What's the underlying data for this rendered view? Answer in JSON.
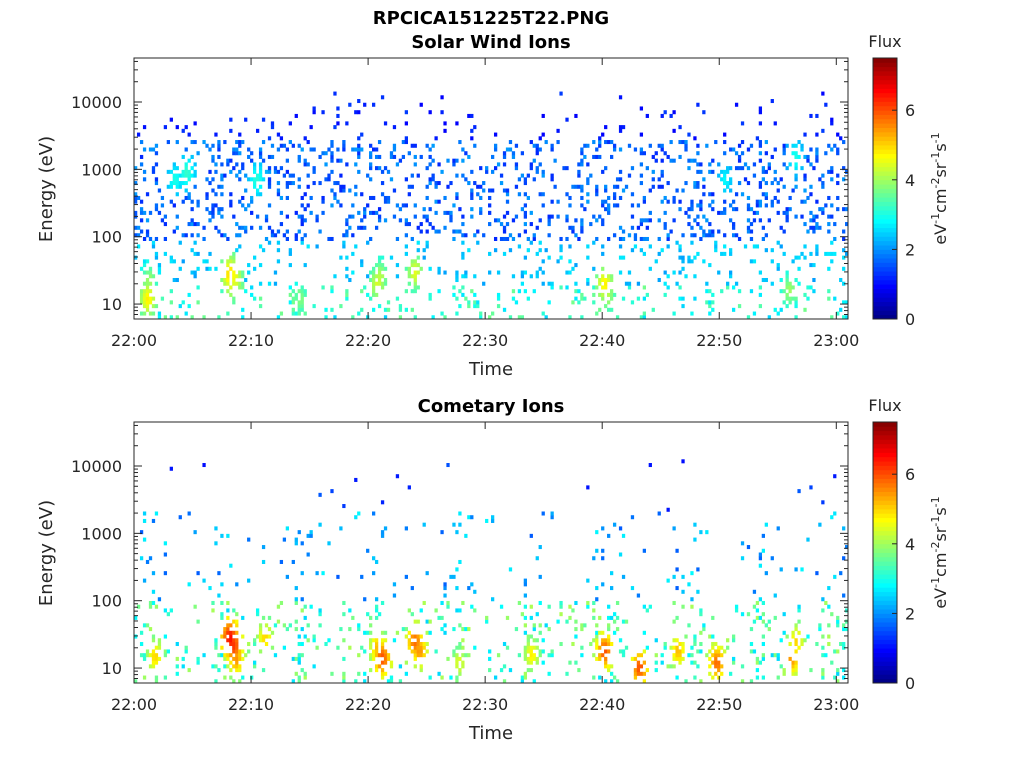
{
  "figure_title": "RPCICA151225T22.PNG",
  "chart_data": [
    {
      "type": "heatmap",
      "title": "Solar Wind Ions",
      "xlabel": "Time",
      "ylabel": "Energy (eV)",
      "y_scale": "log",
      "xlim": [
        "22:00",
        "23:01"
      ],
      "ylim": [
        6,
        45000
      ],
      "x_ticks": [
        "22:00",
        "22:10",
        "22:20",
        "22:30",
        "22:40",
        "22:50",
        "23:00"
      ],
      "y_ticks": [
        10,
        100,
        1000,
        10000
      ],
      "y_tick_labels": [
        "10",
        "100",
        "1000",
        "10000"
      ],
      "colorbar": {
        "title": "Flux",
        "units": "eV",
        "range": [
          0,
          7.5
        ],
        "ticks": [
          0,
          2,
          4,
          6
        ],
        "tick_labels": [
          "0",
          "2",
          "4",
          "6"
        ],
        "colormap": "jet"
      },
      "grid": false,
      "hotspots": [
        {
          "t": 1.2,
          "e": 12,
          "v": 4.8
        },
        {
          "t": 1.3,
          "e": 22,
          "v": 4.0
        },
        {
          "t": 8.2,
          "e": 28,
          "v": 5.0
        },
        {
          "t": 8.3,
          "e": 20,
          "v": 4.5
        },
        {
          "t": 8.6,
          "e": 24,
          "v": 4.6
        },
        {
          "t": 14.2,
          "e": 12,
          "v": 3.8
        },
        {
          "t": 20.8,
          "e": 20,
          "v": 4.4
        },
        {
          "t": 21.0,
          "e": 25,
          "v": 4.2
        },
        {
          "t": 24.0,
          "e": 30,
          "v": 4.5
        },
        {
          "t": 40.2,
          "e": 20,
          "v": 4.8
        },
        {
          "t": 40.4,
          "e": 14,
          "v": 4.2
        },
        {
          "t": 56.0,
          "e": 16,
          "v": 4.0
        },
        {
          "t": 3.5,
          "e": 700,
          "v": 3.0
        },
        {
          "t": 4.5,
          "e": 900,
          "v": 3.2
        },
        {
          "t": 10.5,
          "e": 700,
          "v": 3.1
        },
        {
          "t": 50.5,
          "e": 700,
          "v": 2.8
        },
        {
          "t": 56.5,
          "e": 1500,
          "v": 3.0
        }
      ]
    },
    {
      "type": "heatmap",
      "title": "Cometary Ions",
      "xlabel": "Time",
      "ylabel": "Energy (eV)",
      "y_scale": "log",
      "xlim": [
        "22:00",
        "23:01"
      ],
      "ylim": [
        6,
        45000
      ],
      "x_ticks": [
        "22:00",
        "22:10",
        "22:20",
        "22:30",
        "22:40",
        "22:50",
        "23:00"
      ],
      "y_ticks": [
        10,
        100,
        1000,
        10000
      ],
      "y_tick_labels": [
        "10",
        "100",
        "1000",
        "10000"
      ],
      "colorbar": {
        "title": "Flux",
        "units": "eV",
        "range": [
          0,
          7.5
        ],
        "ticks": [
          0,
          2,
          4,
          6
        ],
        "tick_labels": [
          "0",
          "2",
          "4",
          "6"
        ],
        "colormap": "jet"
      },
      "grid": false,
      "hotspots": [
        {
          "t": 1.8,
          "e": 15,
          "v": 5.0
        },
        {
          "t": 8.2,
          "e": 28,
          "v": 6.5
        },
        {
          "t": 8.5,
          "e": 22,
          "v": 6.2
        },
        {
          "t": 8.7,
          "e": 14,
          "v": 5.5
        },
        {
          "t": 11.2,
          "e": 28,
          "v": 5.0
        },
        {
          "t": 20.8,
          "e": 20,
          "v": 5.2
        },
        {
          "t": 21.2,
          "e": 14,
          "v": 6.0
        },
        {
          "t": 24.0,
          "e": 25,
          "v": 5.8
        },
        {
          "t": 24.4,
          "e": 18,
          "v": 5.5
        },
        {
          "t": 27.8,
          "e": 12,
          "v": 4.5
        },
        {
          "t": 34.0,
          "e": 16,
          "v": 4.8
        },
        {
          "t": 40.2,
          "e": 18,
          "v": 6.0
        },
        {
          "t": 43.2,
          "e": 10,
          "v": 6.0
        },
        {
          "t": 46.5,
          "e": 18,
          "v": 5.2
        },
        {
          "t": 49.8,
          "e": 12,
          "v": 5.8
        },
        {
          "t": 56.2,
          "e": 14,
          "v": 5.5
        },
        {
          "t": 56.6,
          "e": 25,
          "v": 5.0
        }
      ]
    }
  ]
}
